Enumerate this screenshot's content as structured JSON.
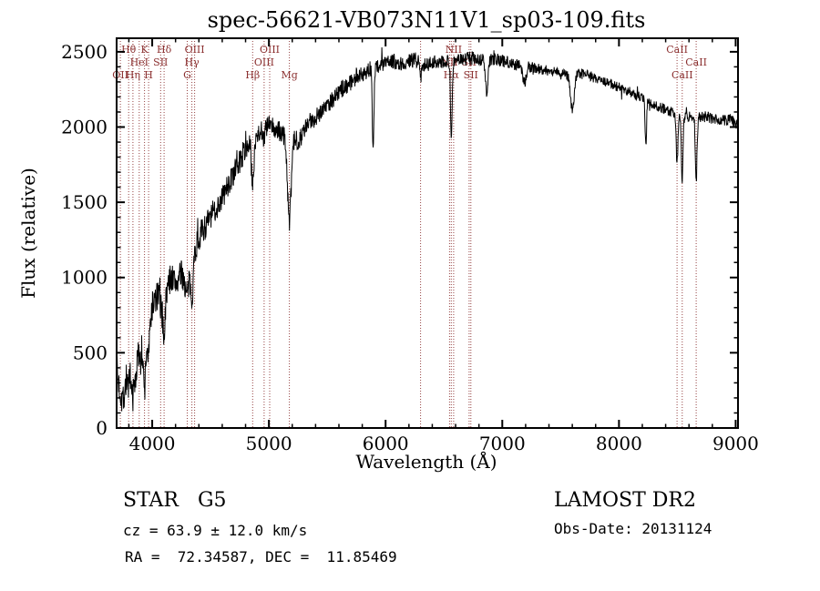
{
  "chart_data": {
    "type": "line",
    "title": "spec-56621-VB073N11V1_sp03-109.fits",
    "xlabel": "Wavelength (Å)",
    "ylabel": "Flux (relative)",
    "xlim": [
      3695,
      9020
    ],
    "ylim": [
      0,
      2590
    ],
    "x_ticks": [
      4000,
      5000,
      6000,
      7000,
      8000,
      9000
    ],
    "y_ticks": [
      0,
      500,
      1000,
      1500,
      2000,
      2500
    ],
    "x_minor_step": 200,
    "y_minor_step": 100,
    "line_color": "#000000",
    "marker_color": "#8b2f2f",
    "sample_step": 3,
    "continuum": [
      [
        3695,
        380
      ],
      [
        3720,
        260
      ],
      [
        3750,
        190
      ],
      [
        3780,
        330
      ],
      [
        3810,
        260
      ],
      [
        3840,
        220
      ],
      [
        3870,
        430
      ],
      [
        3900,
        530
      ],
      [
        3930,
        500
      ],
      [
        3960,
        640
      ],
      [
        4000,
        810
      ],
      [
        4050,
        880
      ],
      [
        4080,
        790
      ],
      [
        4120,
        910
      ],
      [
        4160,
        1010
      ],
      [
        4200,
        960
      ],
      [
        4250,
        1020
      ],
      [
        4300,
        1070
      ],
      [
        4350,
        1130
      ],
      [
        4400,
        1270
      ],
      [
        4500,
        1400
      ],
      [
        4600,
        1530
      ],
      [
        4700,
        1690
      ],
      [
        4800,
        1860
      ],
      [
        4900,
        1960
      ],
      [
        5000,
        2010
      ],
      [
        5100,
        1960
      ],
      [
        5200,
        1930
      ],
      [
        5250,
        1910
      ],
      [
        5350,
        2030
      ],
      [
        5450,
        2110
      ],
      [
        5550,
        2190
      ],
      [
        5650,
        2270
      ],
      [
        5750,
        2330
      ],
      [
        5850,
        2380
      ],
      [
        5950,
        2410
      ],
      [
        6050,
        2440
      ],
      [
        6150,
        2420
      ],
      [
        6250,
        2450
      ],
      [
        6350,
        2410
      ],
      [
        6450,
        2440
      ],
      [
        6550,
        2440
      ],
      [
        6650,
        2450
      ],
      [
        6750,
        2460
      ],
      [
        6850,
        2440
      ],
      [
        6950,
        2450
      ],
      [
        7050,
        2430
      ],
      [
        7150,
        2410
      ],
      [
        7250,
        2400
      ],
      [
        7350,
        2380
      ],
      [
        7450,
        2370
      ],
      [
        7550,
        2350
      ],
      [
        7650,
        2360
      ],
      [
        7750,
        2340
      ],
      [
        7850,
        2310
      ],
      [
        7950,
        2280
      ],
      [
        8050,
        2250
      ],
      [
        8150,
        2210
      ],
      [
        8250,
        2170
      ],
      [
        8350,
        2130
      ],
      [
        8450,
        2100
      ],
      [
        8550,
        2080
      ],
      [
        8650,
        2060
      ],
      [
        8750,
        2070
      ],
      [
        8850,
        2040
      ],
      [
        8950,
        2050
      ],
      [
        9020,
        2020
      ]
    ],
    "absorption_dips": [
      [
        3934,
        260,
        10
      ],
      [
        3969,
        200,
        9
      ],
      [
        4102,
        220,
        10
      ],
      [
        4300,
        180,
        18
      ],
      [
        4340,
        230,
        10
      ],
      [
        4861,
        320,
        10
      ],
      [
        4959,
        60,
        8
      ],
      [
        5175,
        560,
        16
      ],
      [
        5893,
        540,
        7
      ],
      [
        6300,
        120,
        7
      ],
      [
        6563,
        520,
        7
      ],
      [
        6867,
        220,
        10
      ],
      [
        7190,
        110,
        14
      ],
      [
        7600,
        240,
        16
      ],
      [
        8230,
        300,
        6
      ],
      [
        8498,
        330,
        7
      ],
      [
        8542,
        430,
        7
      ],
      [
        8662,
        430,
        7
      ]
    ],
    "noise": {
      "seed": 7,
      "spike_prob": 0.02,
      "spike_mult": 2.3,
      "amplitude": [
        [
          3695,
          125
        ],
        [
          4000,
          110
        ],
        [
          4300,
          95
        ],
        [
          4600,
          85
        ],
        [
          4900,
          78
        ],
        [
          5200,
          70
        ],
        [
          5500,
          62
        ],
        [
          5800,
          55
        ],
        [
          6200,
          50
        ],
        [
          6800,
          45
        ],
        [
          7400,
          36
        ],
        [
          8000,
          33
        ],
        [
          8600,
          35
        ],
        [
          9020,
          38
        ]
      ]
    },
    "spectral_lines": [
      {
        "wl": 3727,
        "label": "OII",
        "row": 2
      },
      {
        "wl": 3798,
        "label": "Hθ",
        "row": 0
      },
      {
        "wl": 3835,
        "label": "Hη",
        "row": 2
      },
      {
        "wl": 3889,
        "label": "HeI",
        "row": 1
      },
      {
        "wl": 3934,
        "label": "K",
        "row": 0
      },
      {
        "wl": 3969,
        "label": "H",
        "row": 2
      },
      {
        "wl": 4072,
        "label": "SII",
        "row": 1
      },
      {
        "wl": 4102,
        "label": "Hδ",
        "row": 0
      },
      {
        "wl": 4300,
        "label": "G",
        "row": 2
      },
      {
        "wl": 4340,
        "label": "Hγ",
        "row": 1
      },
      {
        "wl": 4363,
        "label": "OIII",
        "row": 0
      },
      {
        "wl": 4861,
        "label": "Hβ",
        "row": 2
      },
      {
        "wl": 4959,
        "label": "OIII",
        "row": 1
      },
      {
        "wl": 5007,
        "label": "OIII",
        "row": 0
      },
      {
        "wl": 5175,
        "label": "Mg",
        "row": 2
      },
      {
        "wl": 6300,
        "label": "",
        "row": 0
      },
      {
        "wl": 6548,
        "label": "NII",
        "row": 1
      },
      {
        "wl": 6563,
        "label": "Hα",
        "row": 2
      },
      {
        "wl": 6583,
        "label": "NII",
        "row": 0
      },
      {
        "wl": 6716,
        "label": "SII",
        "row": 1
      },
      {
        "wl": 6731,
        "label": "SII",
        "row": 2
      },
      {
        "wl": 8498,
        "label": "CaII",
        "row": 0
      },
      {
        "wl": 8542,
        "label": "CaII",
        "row": 2
      },
      {
        "wl": 8662,
        "label": "CaII",
        "row": 1
      }
    ]
  },
  "annotations": {
    "object_type": "STAR   G5",
    "cz": "cz = 63.9 ± 12.0 km/s",
    "radec": "RA =  72.34587, DEC =  11.85469",
    "survey": "LAMOST DR2",
    "obs_date": "Obs-Date: 20131124"
  }
}
